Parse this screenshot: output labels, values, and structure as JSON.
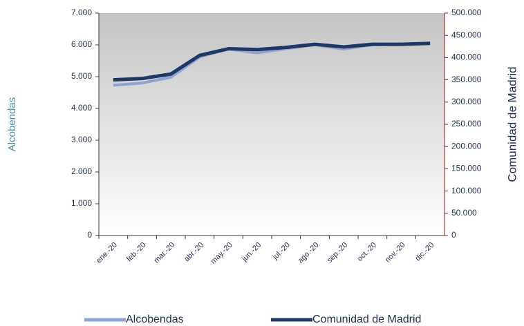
{
  "chart_data": {
    "type": "line",
    "categories": [
      "ene.-20",
      "feb.-20",
      "mar.-20",
      "abr.-20",
      "may.-20",
      "jun.-20",
      "jul.-20",
      "ago.-20",
      "sep.-20",
      "oct.-20",
      "nov.-20",
      "dic.-20"
    ],
    "series": [
      {
        "name": "Alcobendas",
        "color": "#8fa3d6",
        "axis": "y",
        "values": [
          4730,
          4800,
          4980,
          5620,
          5870,
          5750,
          5880,
          6000,
          5870,
          6000,
          6020,
          6050
        ]
      },
      {
        "name": "Comunidad de Madrid",
        "color": "#1f3864",
        "axis": "y2",
        "values": [
          350000,
          353000,
          363000,
          405000,
          420000,
          418000,
          423000,
          430000,
          424000,
          430000,
          430000,
          432000
        ]
      }
    ],
    "y_label": "Alcobendas",
    "y2_label": "Comunidad de Madrid",
    "ylim": [
      0,
      7000
    ],
    "yticks": [
      0,
      {
        "value": 1000,
        "label": "1.000"
      },
      {
        "value": 2000,
        "label": "2.000"
      },
      {
        "value": 3000,
        "label": "3.000"
      },
      {
        "value": 4000,
        "label": "4.000"
      },
      {
        "value": 5000,
        "label": "5.000"
      },
      {
        "value": 6000,
        "label": "6.000"
      },
      {
        "value": 7000,
        "label": "7.000"
      }
    ],
    "y2lim": [
      0,
      500000
    ],
    "y2ticks": [
      0,
      {
        "value": 50000,
        "label": "50.000"
      },
      {
        "value": 100000,
        "label": "100.000"
      },
      {
        "value": 150000,
        "label": "150.000"
      },
      {
        "value": 200000,
        "label": "200.000"
      },
      {
        "value": 250000,
        "label": "250.000"
      },
      {
        "value": 300000,
        "label": "300.000"
      },
      {
        "value": 350000,
        "label": "350.000"
      },
      {
        "value": 400000,
        "label": "400.000"
      },
      {
        "value": 450000,
        "label": "450.000"
      },
      {
        "value": 500000,
        "label": "500.000"
      }
    ],
    "legend": "bottom"
  }
}
